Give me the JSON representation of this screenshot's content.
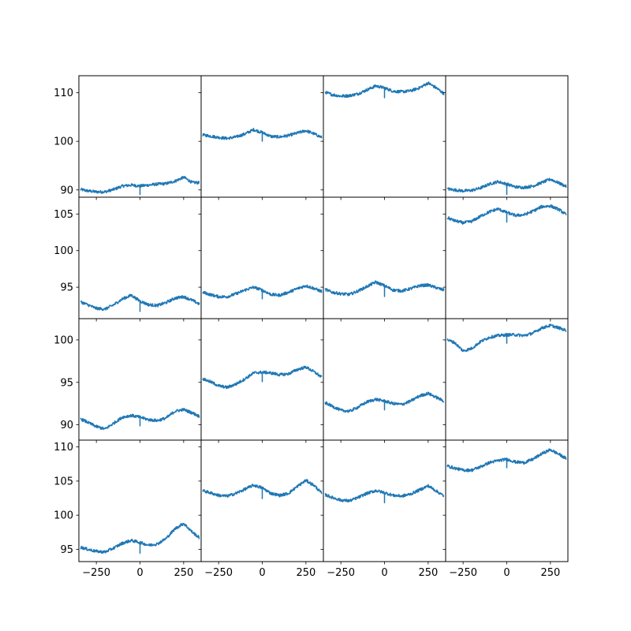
{
  "chart_data": {
    "type": "line",
    "layout": "4x4 grid of subplots, x axis shared per column, y axis shared per row",
    "grid": false,
    "legend": "none",
    "x_range": [
      -350,
      350
    ],
    "x_ticks": [
      -250,
      0,
      250
    ],
    "x_tick_labels": [
      "−250",
      "0",
      "250"
    ],
    "line_color": "#1f77b4",
    "rows": [
      {
        "ylim": [
          88.5,
          113.5
        ],
        "y_ticks": [
          90,
          100,
          110
        ],
        "y_tick_labels": [
          "90",
          "100",
          "110"
        ]
      },
      {
        "ylim": [
          90.7,
          107.3
        ],
        "y_ticks": [
          95,
          100,
          105
        ],
        "y_tick_labels": [
          "95",
          "100",
          "105"
        ]
      },
      {
        "ylim": [
          88.2,
          102.5
        ],
        "y_ticks": [
          90,
          95,
          100
        ],
        "y_tick_labels": [
          "90",
          "95",
          "100"
        ]
      },
      {
        "ylim": [
          93.2,
          111.0
        ],
        "y_ticks": [
          95,
          100,
          105,
          110
        ],
        "y_tick_labels": [
          "95",
          "100",
          "105",
          "110"
        ]
      }
    ],
    "x": [
      -340,
      -300,
      -250,
      -200,
      -150,
      -100,
      -50,
      0,
      50,
      100,
      150,
      200,
      250,
      300,
      340
    ],
    "dip_at_x": 0,
    "series": [
      {
        "row": 0,
        "col": 0,
        "values": [
          90.1,
          89.8,
          89.6,
          89.6,
          90.1,
          90.8,
          91.0,
          90.8,
          91.0,
          91.2,
          91.3,
          91.8,
          92.6,
          91.5,
          91.5
        ]
      },
      {
        "row": 0,
        "col": 1,
        "values": [
          101.3,
          101.1,
          100.8,
          100.6,
          100.9,
          101.5,
          102.4,
          101.8,
          101.0,
          100.9,
          101.2,
          101.7,
          102.2,
          101.5,
          100.8
        ]
      },
      {
        "row": 0,
        "col": 2,
        "values": [
          110.1,
          109.6,
          109.3,
          109.4,
          109.8,
          110.6,
          111.4,
          111.0,
          110.3,
          110.2,
          110.4,
          111.0,
          112.0,
          110.9,
          109.8
        ]
      },
      {
        "row": 0,
        "col": 3,
        "values": [
          90.2,
          90.0,
          89.8,
          89.9,
          90.4,
          91.2,
          91.7,
          91.2,
          90.6,
          90.5,
          90.8,
          91.5,
          92.2,
          91.4,
          90.7
        ]
      },
      {
        "row": 1,
        "col": 0,
        "values": [
          93.0,
          92.6,
          92.1,
          92.0,
          92.6,
          93.4,
          93.9,
          93.1,
          92.6,
          92.5,
          92.9,
          93.5,
          93.7,
          93.2,
          92.7
        ]
      },
      {
        "row": 1,
        "col": 1,
        "values": [
          94.3,
          94.0,
          93.7,
          93.7,
          94.1,
          94.6,
          95.0,
          94.6,
          94.0,
          93.9,
          94.3,
          94.8,
          95.2,
          94.8,
          94.4
        ]
      },
      {
        "row": 1,
        "col": 2,
        "values": [
          94.7,
          94.3,
          94.1,
          94.0,
          94.5,
          95.1,
          95.7,
          95.2,
          94.6,
          94.5,
          94.8,
          95.2,
          95.3,
          94.9,
          94.6
        ]
      },
      {
        "row": 1,
        "col": 3,
        "values": [
          104.5,
          104.1,
          103.8,
          104.0,
          104.7,
          105.3,
          105.7,
          105.2,
          104.8,
          104.9,
          105.4,
          106.0,
          106.1,
          105.6,
          104.9
        ]
      },
      {
        "row": 2,
        "col": 0,
        "values": [
          90.7,
          90.3,
          89.8,
          89.5,
          90.2,
          90.9,
          91.1,
          90.9,
          90.6,
          90.5,
          90.8,
          91.6,
          91.8,
          91.4,
          91.0
        ]
      },
      {
        "row": 2,
        "col": 1,
        "values": [
          95.4,
          95.1,
          94.6,
          94.4,
          94.8,
          95.4,
          96.1,
          96.2,
          96.1,
          95.9,
          96.0,
          96.5,
          96.8,
          96.2,
          95.6
        ]
      },
      {
        "row": 2,
        "col": 2,
        "values": [
          92.6,
          92.2,
          91.7,
          91.6,
          92.1,
          92.7,
          93.0,
          92.8,
          92.5,
          92.4,
          92.8,
          93.4,
          93.7,
          93.2,
          92.8
        ]
      },
      {
        "row": 2,
        "col": 3,
        "values": [
          100.0,
          99.7,
          98.7,
          99.0,
          99.8,
          100.3,
          100.5,
          100.6,
          100.6,
          100.5,
          100.8,
          101.4,
          101.7,
          101.4,
          101.1
        ]
      },
      {
        "row": 3,
        "col": 0,
        "values": [
          95.3,
          95.0,
          94.7,
          94.6,
          95.2,
          95.9,
          96.3,
          96.0,
          95.6,
          95.8,
          96.6,
          98.0,
          98.8,
          97.5,
          96.7
        ]
      },
      {
        "row": 3,
        "col": 1,
        "values": [
          103.6,
          103.3,
          102.9,
          102.8,
          103.2,
          103.8,
          104.4,
          104.0,
          103.2,
          102.9,
          103.2,
          104.2,
          105.1,
          104.3,
          103.2
        ]
      },
      {
        "row": 3,
        "col": 2,
        "values": [
          103.0,
          102.6,
          102.2,
          102.1,
          102.6,
          103.2,
          103.6,
          103.3,
          102.9,
          102.8,
          103.1,
          103.7,
          104.3,
          103.5,
          102.8
        ]
      },
      {
        "row": 3,
        "col": 3,
        "values": [
          107.2,
          106.9,
          106.6,
          106.6,
          107.1,
          107.7,
          108.0,
          108.2,
          107.8,
          107.7,
          108.2,
          109.0,
          109.6,
          108.9,
          108.3
        ]
      }
    ]
  }
}
